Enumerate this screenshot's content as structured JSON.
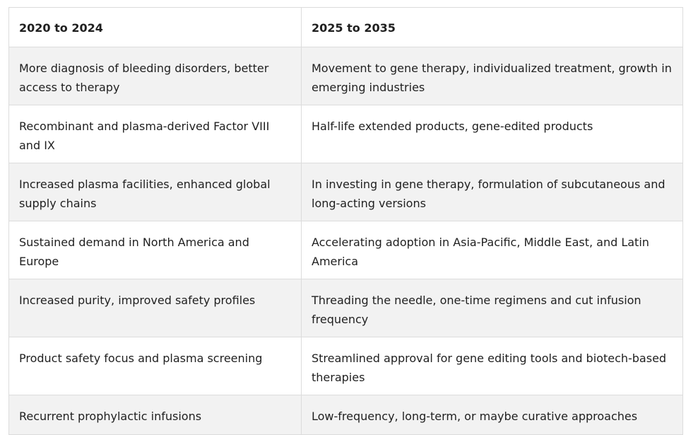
{
  "table": {
    "headers": [
      "2020 to 2024",
      "2025 to 2035"
    ],
    "rows": [
      [
        "More diagnosis of bleeding disorders, better access to therapy",
        "Movement to gene therapy, individualized treatment, growth in emerging industries"
      ],
      [
        "Recombinant and plasma-derived Factor VIII and IX",
        "Half-life extended products, gene-edited products"
      ],
      [
        "Increased plasma facilities, enhanced global supply chains",
        "In investing in gene therapy, formulation of subcutaneous and long-acting versions"
      ],
      [
        "Sustained demand in North America and Europe",
        "Accelerating adoption in Asia-Pacific, Middle East, and Latin America"
      ],
      [
        "Increased purity, improved safety profiles",
        "Threading the needle, one-time regimens and cut infusion frequency"
      ],
      [
        "Product safety focus and plasma screening",
        "Streamlined approval for gene editing tools and biotech-based therapies"
      ],
      [
        "Recurrent prophylactic infusions",
        "Low-frequency, long-term, or maybe curative approaches"
      ]
    ]
  }
}
